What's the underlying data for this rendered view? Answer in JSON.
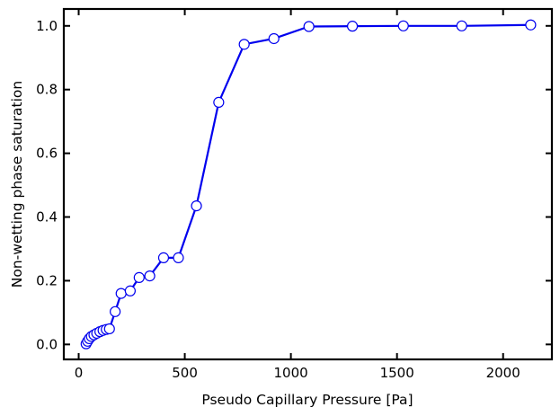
{
  "chart_data": {
    "type": "line",
    "title": "",
    "xlabel": "Pseudo Capillary Pressure [Pa]",
    "ylabel": "Non-wetting phase saturation",
    "xlim": [
      -70,
      2230
    ],
    "ylim": [
      -0.047,
      1.053
    ],
    "xticks": [
      0,
      500,
      1000,
      1500,
      2000
    ],
    "yticks": [
      0.0,
      0.2,
      0.4,
      0.6,
      0.8,
      1.0
    ],
    "xtick_labels": [
      "0",
      "500",
      "1000",
      "1500",
      "2000"
    ],
    "ytick_labels": [
      "0.0",
      "0.2",
      "0.4",
      "0.6",
      "0.8",
      "1.0"
    ],
    "grid": false,
    "legend": "none",
    "series": [
      {
        "line_color": "#0000ee",
        "marker": "circle-open",
        "marker_face": "#ffffff",
        "x": [
          35,
          42,
          50,
          60,
          72,
          85,
          100,
          115,
          130,
          145,
          172,
          200,
          243,
          285,
          335,
          400,
          470,
          555,
          660,
          780,
          920,
          1085,
          1290,
          1530,
          1805,
          2130
        ],
        "y": [
          0.002,
          0.01,
          0.018,
          0.025,
          0.03,
          0.035,
          0.04,
          0.044,
          0.047,
          0.049,
          0.103,
          0.16,
          0.168,
          0.21,
          0.215,
          0.272,
          0.272,
          0.435,
          0.76,
          0.942,
          0.96,
          0.998,
          0.999,
          1.0,
          1.0,
          1.003
        ]
      }
    ]
  }
}
